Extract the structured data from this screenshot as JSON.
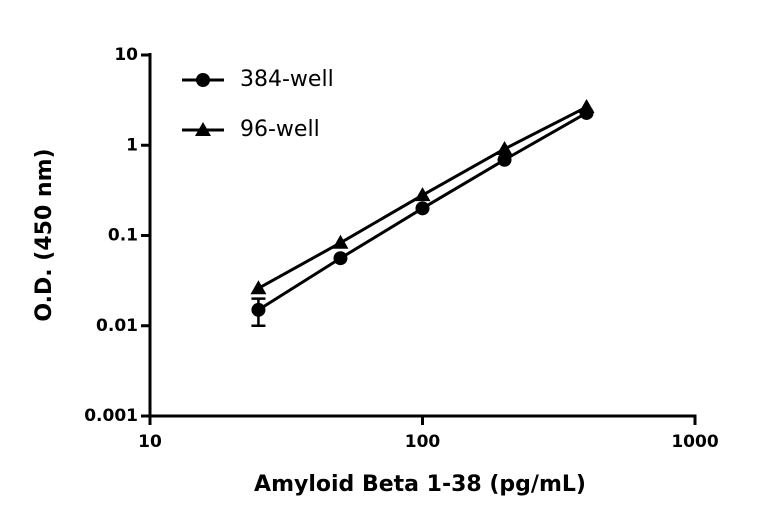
{
  "chart_data": {
    "type": "line",
    "x_label": "Amyloid Beta 1-38 (pg/mL)",
    "y_label": "O.D. (450 nm)",
    "x_scale": "log",
    "y_scale": "log",
    "xlim": [
      10,
      1000
    ],
    "ylim": [
      0.001,
      10
    ],
    "xticks": [
      10,
      100,
      1000
    ],
    "yticks": [
      0.001,
      0.01,
      0.1,
      1,
      10
    ],
    "legend": "upper left",
    "x": [
      25,
      50,
      100,
      200,
      400
    ],
    "series": [
      {
        "name": "384-well",
        "color": "#000000",
        "marker": "circle",
        "values": [
          0.015,
          0.056,
          0.2,
          0.69,
          2.28
        ],
        "errors": [
          0.005,
          null,
          null,
          null,
          null
        ]
      },
      {
        "name": "96-well",
        "color": "#000000",
        "marker": "triangle",
        "values": [
          0.026,
          0.083,
          0.28,
          0.91,
          2.65
        ]
      }
    ]
  }
}
